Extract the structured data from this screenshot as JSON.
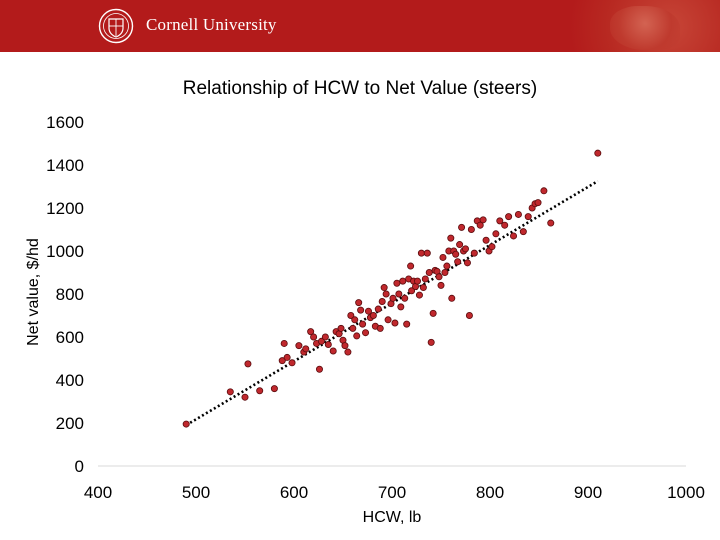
{
  "header": {
    "institution": "Cornell University",
    "brand_color": "#b31b1b"
  },
  "chart_data": {
    "type": "scatter",
    "title": "Relationship of HCW to Net Value (steers)",
    "xlabel": "HCW, lb",
    "ylabel": "Net value, $/hd",
    "xlim": [
      400,
      1000
    ],
    "ylim": [
      0,
      1600
    ],
    "x_ticks": [
      "400",
      "500",
      "600",
      "700",
      "800",
      "900",
      "1000"
    ],
    "y_ticks": [
      "0",
      "200",
      "400",
      "600",
      "800",
      "1000",
      "1200",
      "1400",
      "1600"
    ],
    "grid": false,
    "legend": "none",
    "marker_color": "#c0282d",
    "trendline": {
      "style": "dotted",
      "color": "#000000",
      "from": [
        490,
        190
      ],
      "to": [
        910,
        1325
      ]
    },
    "points": [
      [
        490,
        195
      ],
      [
        535,
        345
      ],
      [
        550,
        320
      ],
      [
        553,
        475
      ],
      [
        565,
        350
      ],
      [
        580,
        360
      ],
      [
        588,
        490
      ],
      [
        590,
        570
      ],
      [
        593,
        505
      ],
      [
        598,
        480
      ],
      [
        605,
        560
      ],
      [
        610,
        530
      ],
      [
        612,
        545
      ],
      [
        617,
        625
      ],
      [
        620,
        600
      ],
      [
        623,
        570
      ],
      [
        626,
        450
      ],
      [
        628,
        580
      ],
      [
        632,
        600
      ],
      [
        635,
        565
      ],
      [
        640,
        535
      ],
      [
        643,
        625
      ],
      [
        646,
        615
      ],
      [
        648,
        640
      ],
      [
        650,
        585
      ],
      [
        652,
        560
      ],
      [
        655,
        530
      ],
      [
        658,
        700
      ],
      [
        660,
        640
      ],
      [
        662,
        680
      ],
      [
        664,
        605
      ],
      [
        666,
        760
      ],
      [
        668,
        725
      ],
      [
        670,
        660
      ],
      [
        673,
        620
      ],
      [
        676,
        720
      ],
      [
        678,
        690
      ],
      [
        681,
        700
      ],
      [
        683,
        650
      ],
      [
        686,
        730
      ],
      [
        688,
        640
      ],
      [
        690,
        765
      ],
      [
        692,
        830
      ],
      [
        694,
        800
      ],
      [
        696,
        680
      ],
      [
        699,
        755
      ],
      [
        701,
        780
      ],
      [
        703,
        665
      ],
      [
        705,
        850
      ],
      [
        707,
        800
      ],
      [
        709,
        740
      ],
      [
        711,
        860
      ],
      [
        713,
        780
      ],
      [
        715,
        660
      ],
      [
        717,
        870
      ],
      [
        719,
        930
      ],
      [
        720,
        815
      ],
      [
        722,
        860
      ],
      [
        724,
        835
      ],
      [
        726,
        860
      ],
      [
        728,
        795
      ],
      [
        730,
        990
      ],
      [
        732,
        830
      ],
      [
        734,
        870
      ],
      [
        736,
        990
      ],
      [
        738,
        900
      ],
      [
        740,
        575
      ],
      [
        742,
        710
      ],
      [
        744,
        910
      ],
      [
        746,
        905
      ],
      [
        748,
        880
      ],
      [
        750,
        840
      ],
      [
        752,
        970
      ],
      [
        754,
        900
      ],
      [
        756,
        930
      ],
      [
        758,
        1000
      ],
      [
        760,
        1060
      ],
      [
        761,
        780
      ],
      [
        763,
        1000
      ],
      [
        765,
        985
      ],
      [
        767,
        950
      ],
      [
        769,
        1030
      ],
      [
        771,
        1110
      ],
      [
        773,
        1000
      ],
      [
        775,
        1010
      ],
      [
        777,
        945
      ],
      [
        779,
        700
      ],
      [
        781,
        1100
      ],
      [
        784,
        990
      ],
      [
        787,
        1140
      ],
      [
        790,
        1120
      ],
      [
        793,
        1145
      ],
      [
        796,
        1050
      ],
      [
        799,
        1000
      ],
      [
        802,
        1020
      ],
      [
        806,
        1080
      ],
      [
        810,
        1140
      ],
      [
        815,
        1120
      ],
      [
        819,
        1160
      ],
      [
        824,
        1070
      ],
      [
        829,
        1170
      ],
      [
        834,
        1090
      ],
      [
        839,
        1160
      ],
      [
        843,
        1200
      ],
      [
        846,
        1220
      ],
      [
        849,
        1225
      ],
      [
        855,
        1280
      ],
      [
        862,
        1130
      ],
      [
        910,
        1455
      ]
    ]
  }
}
